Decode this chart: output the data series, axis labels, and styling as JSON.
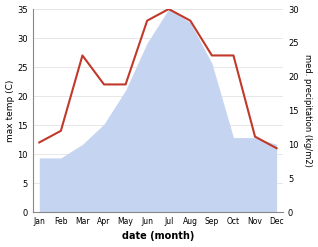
{
  "months": [
    "Jan",
    "Feb",
    "Mar",
    "Apr",
    "May",
    "Jun",
    "Jul",
    "Aug",
    "Sep",
    "Oct",
    "Nov",
    "Dec"
  ],
  "temperature": [
    12,
    14,
    27,
    22,
    22,
    33,
    35,
    33,
    27,
    27,
    13,
    11
  ],
  "precipitation": [
    8,
    8,
    10,
    13,
    18,
    25,
    30,
    28,
    22,
    11,
    11,
    10
  ],
  "temp_color": "#c0392b",
  "precip_color": "#c5d4f0",
  "ylim_left": [
    0,
    35
  ],
  "ylim_right": [
    0,
    30
  ],
  "xlabel": "date (month)",
  "ylabel_left": "max temp (C)",
  "ylabel_right": "med. precipitation (kg/m2)",
  "bg_color": "#ffffff",
  "grid_color": "#dddddd",
  "left_ticks": [
    0,
    5,
    10,
    15,
    20,
    25,
    30,
    35
  ],
  "right_ticks": [
    0,
    5,
    10,
    15,
    20,
    25,
    30
  ]
}
